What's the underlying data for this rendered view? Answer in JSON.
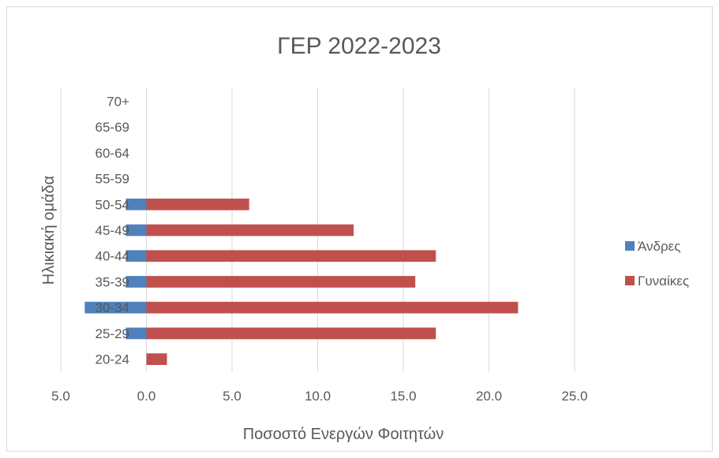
{
  "chart_data": {
    "type": "bar",
    "orientation": "horizontal",
    "title": "ΓΕΡ 2022-2023",
    "xlabel": "Ποσοστό Ενεργών Φοιτητών",
    "ylabel": "Ηλικιακή ομάδα",
    "categories": [
      "20-24",
      "25-29",
      "30-34",
      "35-39",
      "40-44",
      "45-49",
      "50-54",
      "55-59",
      "60-64",
      "65-69",
      "70+"
    ],
    "series": [
      {
        "name": "Άνδρες",
        "color": "#4F81BD",
        "values": [
          0,
          -1.2,
          -3.6,
          -1.2,
          -1.2,
          -1.2,
          -1.2,
          0,
          0,
          0,
          0
        ]
      },
      {
        "name": "Γυναίκες",
        "color": "#C0504D",
        "values": [
          1.2,
          16.9,
          21.7,
          15.7,
          16.9,
          12.1,
          6.0,
          0,
          0,
          0,
          0
        ]
      }
    ],
    "xlim": [
      -5,
      25
    ],
    "xticks": [
      -5,
      0,
      5,
      10,
      15,
      20,
      25
    ],
    "xtick_labels": [
      "5.0",
      "0.0",
      "5.0",
      "10.0",
      "15.0",
      "20.0",
      "25.0"
    ],
    "grid": "vertical",
    "legend_position": "right"
  }
}
